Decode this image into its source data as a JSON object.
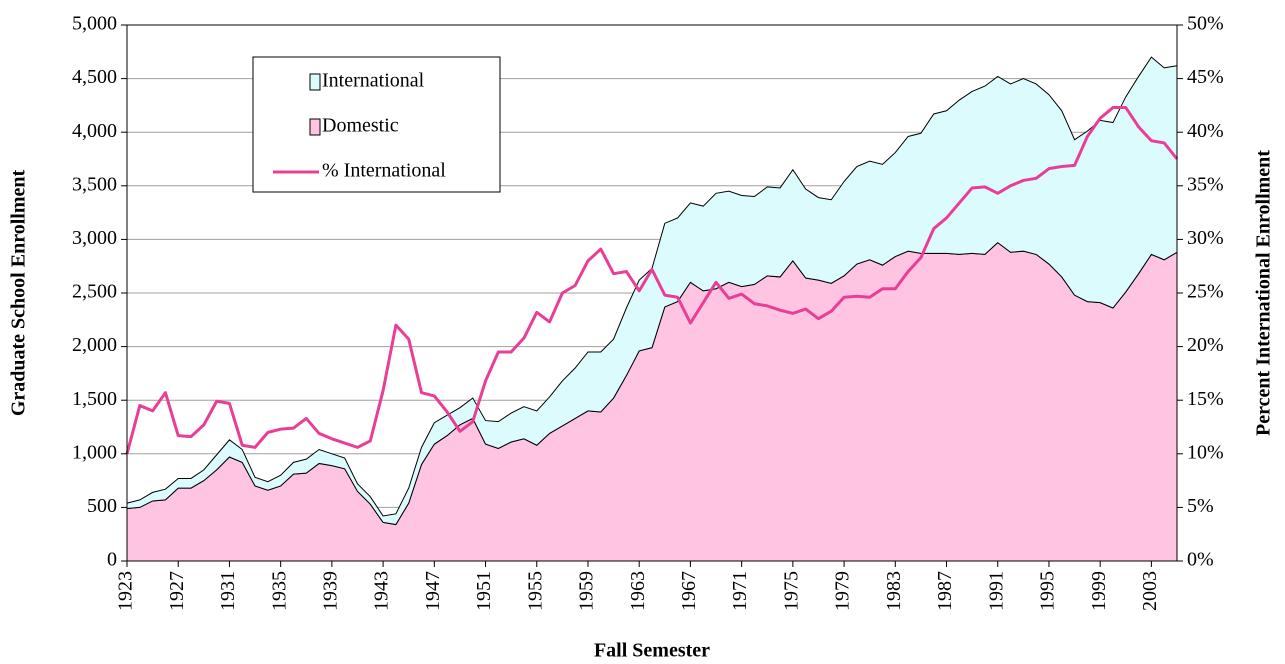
{
  "chart_data": {
    "type": "area",
    "xlabel": "Fall Semester",
    "ylabel": "Graduate School Enrollment",
    "y2label": "Percent International Enrollment",
    "x": [
      1923,
      1924,
      1925,
      1926,
      1927,
      1928,
      1929,
      1930,
      1931,
      1932,
      1933,
      1934,
      1935,
      1936,
      1937,
      1938,
      1939,
      1940,
      1941,
      1942,
      1943,
      1944,
      1945,
      1946,
      1947,
      1948,
      1949,
      1950,
      1951,
      1952,
      1953,
      1954,
      1955,
      1956,
      1957,
      1958,
      1959,
      1960,
      1961,
      1962,
      1963,
      1964,
      1965,
      1966,
      1967,
      1968,
      1969,
      1970,
      1971,
      1972,
      1973,
      1974,
      1975,
      1976,
      1977,
      1978,
      1979,
      1980,
      1981,
      1982,
      1983,
      1984,
      1985,
      1986,
      1987,
      1988,
      1989,
      1990,
      1991,
      1992,
      1993,
      1994,
      1995,
      1996,
      1997,
      1998,
      1999,
      2000,
      2001,
      2002,
      2003,
      2004,
      2005
    ],
    "xlim": [
      1923,
      2005
    ],
    "xticks": [
      1923,
      1927,
      1931,
      1935,
      1939,
      1943,
      1947,
      1951,
      1955,
      1959,
      1963,
      1967,
      1971,
      1975,
      1979,
      1983,
      1987,
      1991,
      1995,
      1999,
      2003
    ],
    "ylim": [
      0,
      5000
    ],
    "yticks": [
      0,
      500,
      {
        "value": 1000,
        "label": "1,000"
      },
      {
        "value": 1500,
        "label": "1,500"
      },
      {
        "value": 2000,
        "label": "2,000"
      },
      {
        "value": 2500,
        "label": "2,500"
      },
      {
        "value": 3000,
        "label": "3,000"
      },
      {
        "value": 3500,
        "label": "3,500"
      },
      {
        "value": 4000,
        "label": "4,000"
      },
      {
        "value": 4500,
        "label": "4,500"
      },
      {
        "value": 5000,
        "label": "5,000"
      }
    ],
    "y2lim": [
      0,
      50
    ],
    "y2ticks": [
      {
        "value": 0,
        "label": "0%"
      },
      {
        "value": 5,
        "label": "5%"
      },
      {
        "value": 10,
        "label": "10%"
      },
      {
        "value": 15,
        "label": "15%"
      },
      {
        "value": 20,
        "label": "20%"
      },
      {
        "value": 25,
        "label": "25%"
      },
      {
        "value": 30,
        "label": "30%"
      },
      {
        "value": 35,
        "label": "35%"
      },
      {
        "value": 40,
        "label": "40%"
      },
      {
        "value": 45,
        "label": "45%"
      },
      {
        "value": 50,
        "label": "50%"
      }
    ],
    "grid": true,
    "legend": "upper left",
    "series": [
      {
        "name": "International",
        "color": "#dcfbfd",
        "stack": true,
        "values": [
          50,
          70,
          80,
          100,
          90,
          90,
          100,
          140,
          160,
          120,
          80,
          80,
          100,
          110,
          130,
          130,
          110,
          100,
          70,
          70,
          60,
          100,
          140,
          160,
          200,
          190,
          160,
          190,
          220,
          250,
          270,
          300,
          320,
          340,
          420,
          470,
          550,
          560,
          550,
          630,
          660,
          740,
          780,
          780,
          740,
          790,
          890,
          850,
          850,
          820,
          830,
          830,
          850,
          830,
          770,
          780,
          880,
          910,
          920,
          940,
          970,
          1070,
          1120,
          1300,
          1330,
          1440,
          1510,
          1570,
          1550,
          1570,
          1610,
          1590,
          1580,
          1550,
          1450,
          1590,
          1700,
          1730,
          1820,
          1840,
          1840,
          1790,
          1740
        ]
      },
      {
        "name": "Domestic",
        "color": "#ffc4e1",
        "stack": true,
        "values": [
          490,
          500,
          560,
          570,
          680,
          680,
          750,
          850,
          970,
          920,
          700,
          660,
          700,
          810,
          820,
          910,
          890,
          860,
          650,
          530,
          360,
          340,
          540,
          900,
          1090,
          1170,
          1270,
          1330,
          1090,
          1050,
          1110,
          1140,
          1080,
          1190,
          1260,
          1330,
          1400,
          1390,
          1520,
          1730,
          1960,
          1990,
          2370,
          2420,
          2600,
          2520,
          2540,
          2600,
          2560,
          2580,
          2660,
          2650,
          2800,
          2640,
          2620,
          2590,
          2660,
          2770,
          2810,
          2760,
          2840,
          2890,
          2870,
          2870,
          2870,
          2860,
          2870,
          2860,
          2970,
          2880,
          2890,
          2860,
          2770,
          2650,
          2480,
          2420,
          2410,
          2360,
          2510,
          2680,
          2860,
          2810,
          2880
        ]
      },
      {
        "name": "% International",
        "color": "#e83e96",
        "type": "line",
        "axis": "y2",
        "values": [
          10,
          14.5,
          14,
          15.7,
          11.7,
          11.6,
          12.7,
          14.9,
          14.7,
          10.8,
          10.6,
          12,
          12.3,
          12.4,
          13.3,
          11.9,
          11.4,
          11,
          10.6,
          11.2,
          15.9,
          22,
          20.7,
          15.7,
          15.4,
          13.9,
          12.1,
          13,
          16.8,
          19.5,
          19.5,
          20.8,
          23.2,
          22.3,
          25,
          25.7,
          28,
          29.1,
          26.8,
          27,
          25.2,
          27.2,
          24.8,
          24.6,
          22.2,
          24.1,
          26,
          24.5,
          24.9,
          24,
          23.8,
          23.4,
          23.1,
          23.5,
          22.6,
          23.3,
          24.6,
          24.7,
          24.6,
          25.4,
          25.4,
          27,
          28.3,
          31,
          32,
          33.4,
          34.8,
          34.9,
          34.3,
          35,
          35.5,
          35.7,
          36.6,
          36.8,
          36.9,
          39.6,
          41.3,
          42.3,
          42.3,
          40.5,
          39.2,
          39,
          37.5
        ]
      }
    ]
  }
}
